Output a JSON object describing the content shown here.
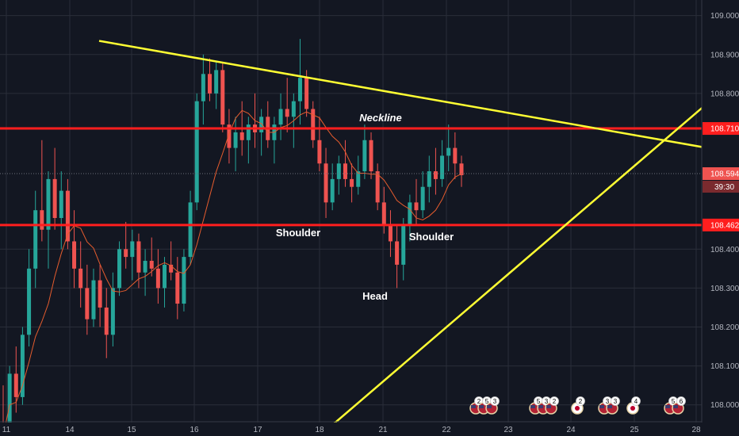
{
  "chart_data": {
    "type": "candlestick",
    "y_axis": {
      "ticks": [
        "109.000",
        "108.900",
        "108.800",
        "108.710",
        "108.594",
        "108.462",
        "108.400",
        "108.300",
        "108.200",
        "108.100",
        "108.000"
      ],
      "ylim": [
        107.92,
        109.04
      ]
    },
    "x_axis": {
      "ticks": [
        "11",
        "14",
        "15",
        "16",
        "17",
        "18",
        "21",
        "22",
        "23",
        "24",
        "25",
        "28"
      ]
    },
    "levels": [
      {
        "name": "neckline",
        "price": 108.71,
        "label": "108.710",
        "color": "#ff1e1e"
      },
      {
        "name": "support",
        "price": 108.462,
        "label": "108.462",
        "color": "#ff1e1e"
      }
    ],
    "current_price": {
      "price": 108.594,
      "label": "108.594",
      "timer": "39:30",
      "color": "#ef5350"
    },
    "trendlines": [
      {
        "name": "upper-trendline",
        "from": {
          "x": "14.5",
          "y": 108.935
        },
        "to": {
          "x": "28",
          "y": 108.665
        },
        "color": "#ffff33"
      },
      {
        "name": "lower-trendline",
        "from": {
          "x": "18",
          "y": 107.92
        },
        "to": {
          "x": "28",
          "y": 108.75
        },
        "color": "#ffff33"
      }
    ],
    "annotations": [
      {
        "name": "neckline",
        "text": "Neckline",
        "italic": true
      },
      {
        "name": "left-shoulder",
        "text": "Shoulder"
      },
      {
        "name": "head",
        "text": "Head"
      },
      {
        "name": "right-shoulder",
        "text": "Shoulder"
      }
    ],
    "colors": {
      "up": "#26a69a",
      "down": "#ef5350",
      "ma": "#e65c2e",
      "background": "#131722",
      "grid": "#2a2e39"
    },
    "candles_ohlc": [
      [
        107.95,
        108.05,
        107.88,
        107.92
      ],
      [
        107.92,
        108.1,
        107.9,
        108.08
      ],
      [
        108.08,
        108.15,
        107.98,
        108.02
      ],
      [
        108.02,
        108.2,
        108.0,
        108.18
      ],
      [
        108.18,
        108.4,
        108.15,
        108.35
      ],
      [
        108.35,
        108.55,
        108.3,
        108.5
      ],
      [
        108.5,
        108.68,
        108.42,
        108.45
      ],
      [
        108.45,
        108.6,
        108.35,
        108.58
      ],
      [
        108.58,
        108.66,
        108.45,
        108.48
      ],
      [
        108.48,
        108.6,
        108.4,
        108.55
      ],
      [
        108.55,
        108.58,
        108.4,
        108.42
      ],
      [
        108.42,
        108.5,
        108.3,
        108.35
      ],
      [
        108.35,
        108.42,
        108.25,
        108.3
      ],
      [
        108.3,
        108.36,
        108.18,
        108.22
      ],
      [
        108.22,
        108.35,
        108.2,
        108.32
      ],
      [
        108.32,
        108.36,
        108.2,
        108.25
      ],
      [
        108.25,
        108.3,
        108.12,
        108.18
      ],
      [
        108.18,
        108.34,
        108.15,
        108.3
      ],
      [
        108.3,
        108.42,
        108.28,
        108.4
      ],
      [
        108.4,
        108.47,
        108.35,
        108.38
      ],
      [
        108.38,
        108.45,
        108.32,
        108.42
      ],
      [
        108.42,
        108.44,
        108.3,
        108.34
      ],
      [
        108.34,
        108.4,
        108.28,
        108.37
      ],
      [
        108.37,
        108.43,
        108.33,
        108.35
      ],
      [
        108.35,
        108.4,
        108.26,
        108.3
      ],
      [
        108.3,
        108.38,
        108.25,
        108.36
      ],
      [
        108.36,
        108.42,
        108.32,
        108.34
      ],
      [
        108.34,
        108.38,
        108.22,
        108.26
      ],
      [
        108.26,
        108.4,
        108.24,
        108.38
      ],
      [
        108.38,
        108.55,
        108.36,
        108.52
      ],
      [
        108.52,
        108.8,
        108.5,
        108.78
      ],
      [
        108.78,
        108.9,
        108.72,
        108.85
      ],
      [
        108.85,
        108.89,
        108.78,
        108.8
      ],
      [
        108.8,
        108.88,
        108.76,
        108.86
      ],
      [
        108.86,
        108.88,
        108.7,
        108.72
      ],
      [
        108.72,
        108.76,
        108.62,
        108.66
      ],
      [
        108.66,
        108.74,
        108.6,
        108.7
      ],
      [
        108.7,
        108.78,
        108.64,
        108.68
      ],
      [
        108.68,
        108.74,
        108.62,
        108.72
      ],
      [
        108.72,
        108.8,
        108.66,
        108.7
      ],
      [
        108.7,
        108.76,
        108.64,
        108.74
      ],
      [
        108.74,
        108.78,
        108.66,
        108.68
      ],
      [
        108.68,
        108.74,
        108.62,
        108.72
      ],
      [
        108.72,
        108.8,
        108.68,
        108.76
      ],
      [
        108.76,
        108.84,
        108.7,
        108.74
      ],
      [
        108.74,
        108.8,
        108.66,
        108.78
      ],
      [
        108.78,
        108.94,
        108.72,
        108.84
      ],
      [
        108.84,
        108.86,
        108.74,
        108.76
      ],
      [
        108.76,
        108.78,
        108.66,
        108.68
      ],
      [
        108.68,
        108.74,
        108.6,
        108.62
      ],
      [
        108.62,
        108.66,
        108.48,
        108.52
      ],
      [
        108.52,
        108.62,
        108.5,
        108.58
      ],
      [
        108.58,
        108.64,
        108.54,
        108.62
      ],
      [
        108.62,
        108.68,
        108.56,
        108.58
      ],
      [
        108.58,
        108.62,
        108.52,
        108.56
      ],
      [
        108.56,
        108.64,
        108.54,
        108.6
      ],
      [
        108.6,
        108.72,
        108.58,
        108.68
      ],
      [
        108.68,
        108.7,
        108.58,
        108.6
      ],
      [
        108.6,
        108.62,
        108.5,
        108.52
      ],
      [
        108.52,
        108.56,
        108.44,
        108.46
      ],
      [
        108.46,
        108.5,
        108.38,
        108.42
      ],
      [
        108.42,
        108.46,
        108.3,
        108.36
      ],
      [
        108.36,
        108.48,
        108.32,
        108.46
      ],
      [
        108.46,
        108.54,
        108.42,
        108.52
      ],
      [
        108.52,
        108.58,
        108.46,
        108.5
      ],
      [
        108.5,
        108.6,
        108.48,
        108.56
      ],
      [
        108.56,
        108.64,
        108.52,
        108.6
      ],
      [
        108.6,
        108.66,
        108.54,
        108.58
      ],
      [
        108.58,
        108.68,
        108.56,
        108.64
      ],
      [
        108.64,
        108.72,
        108.6,
        108.66
      ],
      [
        108.66,
        108.7,
        108.58,
        108.62
      ],
      [
        108.62,
        108.64,
        108.56,
        108.59
      ]
    ]
  },
  "events": [
    {
      "name": "event-group-1",
      "labels": [
        "2",
        "5",
        "3"
      ]
    },
    {
      "name": "event-group-2",
      "labels": [
        "5",
        "3",
        "2"
      ]
    },
    {
      "name": "event-group-3",
      "labels": [
        "2"
      ]
    },
    {
      "name": "event-group-4",
      "labels": [
        "3",
        "3"
      ]
    },
    {
      "name": "event-group-5",
      "labels": [
        "4"
      ]
    },
    {
      "name": "event-group-6",
      "labels": [
        "5",
        "6"
      ]
    }
  ]
}
